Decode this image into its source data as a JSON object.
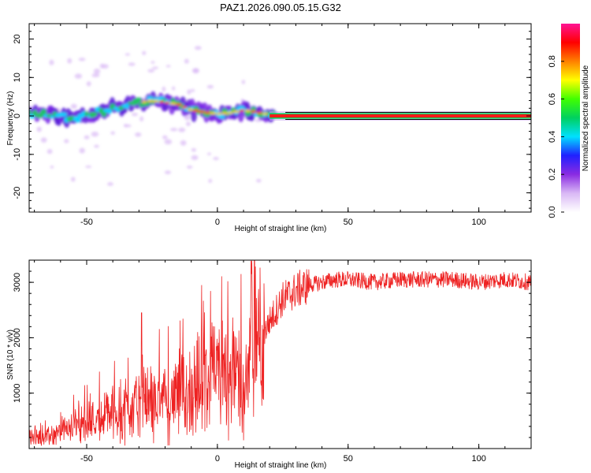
{
  "title": "PAZ1.2026.090.05.15.G32",
  "chart_data": [
    {
      "type": "heatmap",
      "name": "spectrogram",
      "xlabel": "Height of straight line (km)",
      "ylabel": "Frequency (Hz)",
      "xlim": [
        -72,
        120
      ],
      "ylim": [
        -25,
        24
      ],
      "xticks": [
        -50,
        0,
        50,
        100
      ],
      "xtick_labels": [
        "-50",
        "0",
        "50",
        "100"
      ],
      "yticks": [
        -20,
        -10,
        0,
        10,
        20
      ],
      "ytick_labels": [
        "-20",
        "-10",
        "0",
        "10",
        "20"
      ],
      "ridge": {
        "x": [
          -72,
          -65,
          -60,
          -55,
          -50,
          -45,
          -40,
          -35,
          -30,
          -25,
          -20,
          -15,
          -10,
          -5,
          0,
          5,
          10,
          15,
          20,
          25,
          120
        ],
        "y": [
          0.5,
          0.8,
          0.0,
          -0.5,
          0.3,
          1.0,
          2.0,
          2.5,
          3.5,
          4.0,
          3.5,
          3.0,
          1.5,
          1.0,
          0.5,
          0.8,
          1.5,
          1.0,
          0.3,
          0.0,
          0.0
        ]
      },
      "colorbar": {
        "label": "Normalized spectral amplitude",
        "range": [
          0.0,
          1.0
        ],
        "ticks": [
          0.0,
          0.2,
          0.4,
          0.6,
          0.8
        ],
        "tick_labels": [
          "0.0",
          "0.2",
          "0.4",
          "0.6",
          "0.8"
        ],
        "colors": [
          "#ffffff",
          "#d9b8f5",
          "#8a2be2",
          "#2020ff",
          "#00e0ff",
          "#00d060",
          "#40ff00",
          "#ffff00",
          "#ff8000",
          "#ff0000",
          "#ff1493"
        ]
      }
    },
    {
      "type": "line",
      "name": "snr",
      "xlabel": "Height of straight line (km)",
      "ylabel": "SNR (10 * v/v)",
      "xlim": [
        -72,
        120
      ],
      "ylim": [
        0,
        3400
      ],
      "xticks": [
        -50,
        0,
        50,
        100
      ],
      "xtick_labels": [
        "-50",
        "0",
        "50",
        "100"
      ],
      "yticks": [
        1000,
        2000,
        3000
      ],
      "ytick_labels": [
        "1000",
        "2000",
        "3000"
      ],
      "color": "#ee2222",
      "x": [
        -72,
        -65,
        -60,
        -55,
        -50,
        -45,
        -40,
        -35,
        -30,
        -25,
        -20,
        -15,
        -10,
        -5,
        0,
        5,
        8,
        10,
        12,
        15,
        20,
        25,
        30,
        35,
        40,
        45,
        50,
        60,
        70,
        80,
        90,
        100,
        110,
        120
      ],
      "y": [
        180,
        220,
        300,
        400,
        480,
        560,
        650,
        750,
        800,
        850,
        880,
        950,
        1050,
        1200,
        1300,
        1450,
        1400,
        700,
        1550,
        1800,
        2300,
        2700,
        2850,
        2950,
        3000,
        3050,
        3050,
        3000,
        3050,
        3050,
        3050,
        3000,
        3050,
        3000
      ],
      "spikes": [
        {
          "x": -29,
          "y": 2450
        },
        {
          "x": -6,
          "y": 2950
        },
        {
          "x": 9,
          "y": 3150
        },
        {
          "x": 10,
          "y": 150
        },
        {
          "x": 13,
          "y": 3150
        }
      ]
    }
  ]
}
